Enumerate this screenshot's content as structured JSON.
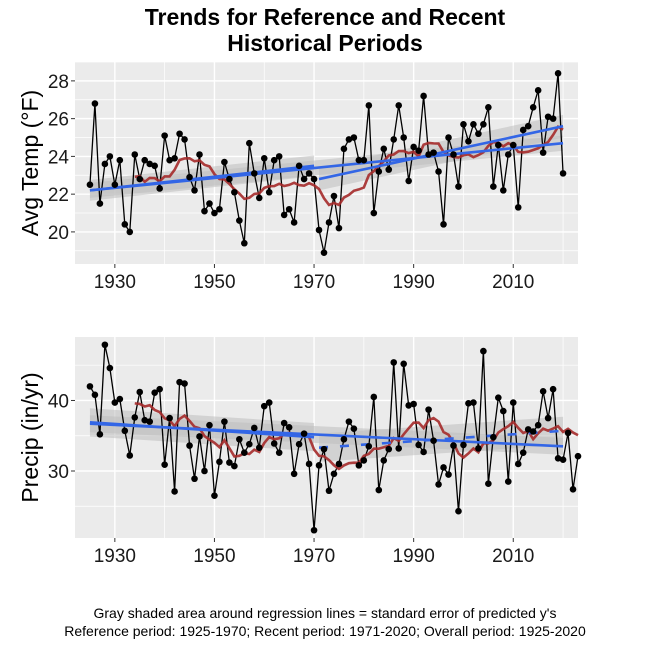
{
  "title_line1": "Trends for Reference and Recent",
  "title_line2": "Historical Periods",
  "caption_line1": "Gray shaded area around regression lines = standard error of predicted y's",
  "caption_line2": "Reference period: 1925-1970; Recent period: 1971-2020; Overall period: 1925-2020",
  "colors": {
    "panel_bg": "#ebebeb",
    "grid": "#ffffff",
    "points": "#000000",
    "regression": "#3366e6",
    "moving_avg": "#a52a2a",
    "se_band": "#bdbdbd"
  },
  "chart_data": [
    {
      "type": "line",
      "title": "",
      "xlabel": "",
      "ylabel": "Avg Temp (°F)",
      "xlim": [
        1922,
        2023
      ],
      "ylim": [
        18.3,
        29
      ],
      "xticks": [
        1930,
        1950,
        1970,
        1990,
        2010
      ],
      "yticks": [
        20,
        22,
        24,
        26,
        28
      ],
      "grid": true,
      "x_start": 1925,
      "values": [
        22.5,
        26.8,
        21.5,
        23.6,
        24.0,
        22.5,
        23.8,
        20.4,
        20.0,
        24.1,
        22.8,
        23.8,
        23.6,
        23.5,
        22.3,
        25.1,
        23.8,
        23.9,
        25.2,
        24.9,
        22.9,
        22.2,
        24.1,
        21.1,
        21.5,
        21.0,
        21.2,
        23.7,
        22.8,
        22.1,
        20.6,
        19.4,
        24.7,
        23.1,
        21.8,
        23.9,
        22.1,
        23.8,
        24.0,
        20.9,
        21.2,
        20.5,
        23.5,
        22.8,
        23.1,
        22.8,
        20.1,
        18.9,
        20.5,
        21.9,
        20.2,
        24.4,
        24.9,
        25.0,
        23.8,
        23.8,
        26.7,
        21.0,
        23.2,
        24.4,
        23.3,
        24.9,
        26.7,
        25.0,
        22.7,
        24.5,
        24.3,
        27.2,
        24.1,
        24.2,
        23.2,
        20.4,
        25.0,
        24.1,
        22.4,
        25.7,
        24.8,
        25.7,
        25.2,
        25.7,
        26.6,
        22.4,
        24.6,
        22.2,
        24.1,
        24.6,
        21.3,
        25.4,
        25.6,
        26.6,
        27.5,
        24.2,
        26.1,
        26.0,
        28.4,
        23.1
      ],
      "regressions": [
        {
          "name": "Reference period",
          "from": 1925,
          "to": 1970,
          "y_start": 22.2,
          "y_end": 23.5,
          "se": 0.55,
          "style": "solid"
        },
        {
          "name": "Recent period",
          "from": 1971,
          "to": 2020,
          "y_start": 22.8,
          "y_end": 25.6,
          "se": 0.6,
          "style": "solid"
        },
        {
          "name": "Overall period",
          "from": 1925,
          "to": 2020,
          "y_start": 22.2,
          "y_end": 24.7,
          "se": 0.4,
          "style": "solid"
        }
      ],
      "moving_avg_window": 10
    },
    {
      "type": "line",
      "title": "",
      "xlabel": "",
      "ylabel": "Precip (in/yr)",
      "xlim": [
        1922,
        2023
      ],
      "ylim": [
        20.5,
        49
      ],
      "xticks": [
        1930,
        1950,
        1970,
        1990,
        2010
      ],
      "yticks": [
        30,
        40
      ],
      "grid": true,
      "x_start": 1925,
      "values": [
        42.0,
        40.8,
        35.2,
        47.9,
        44.6,
        39.7,
        40.2,
        35.7,
        32.2,
        37.6,
        41.2,
        37.2,
        37.0,
        41.1,
        41.6,
        30.9,
        37.5,
        27.1,
        42.6,
        42.4,
        33.6,
        28.9,
        34.9,
        30.0,
        36.5,
        26.5,
        31.3,
        37.0,
        31.2,
        30.7,
        34.5,
        32.6,
        33.8,
        36.1,
        33.3,
        39.2,
        39.7,
        33.9,
        32.6,
        36.8,
        36.2,
        29.6,
        33.8,
        35.3,
        31.0,
        21.6,
        30.8,
        33.1,
        27.2,
        29.6,
        31.0,
        34.5,
        37.0,
        36.0,
        30.8,
        31.5,
        33.5,
        40.5,
        27.3,
        31.5,
        33.1,
        45.4,
        33.2,
        45.2,
        39.3,
        39.5,
        33.7,
        32.7,
        38.7,
        34.3,
        28.1,
        30.5,
        29.5,
        33.6,
        24.3,
        33.7,
        39.6,
        39.7,
        33.2,
        47.0,
        28.2,
        34.8,
        40.4,
        38.5,
        28.5,
        39.7,
        31.0,
        32.6,
        35.9,
        35.6,
        36.5,
        41.3,
        37.5,
        41.6,
        31.8,
        31.6,
        35.4,
        27.4,
        32.1
      ],
      "regressions": [
        {
          "name": "Reference period",
          "from": 1925,
          "to": 1970,
          "y_start": 36.9,
          "y_end": 34.8,
          "se": 2.0,
          "style": "solid"
        },
        {
          "name": "Recent period",
          "from": 1971,
          "to": 2020,
          "y_start": 33.3,
          "y_end": 35.7,
          "se": 2.0,
          "style": "dashed"
        },
        {
          "name": "Overall period",
          "from": 1925,
          "to": 2020,
          "y_start": 36.7,
          "y_end": 33.5,
          "se": 1.2,
          "style": "solid"
        }
      ],
      "moving_avg_window": 10
    }
  ]
}
